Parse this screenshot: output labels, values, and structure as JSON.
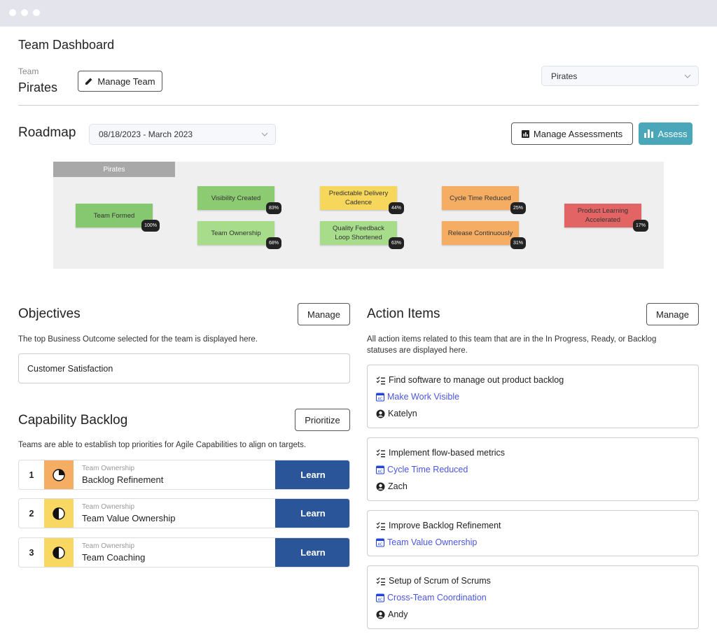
{
  "header": {
    "title": "Team Dashboard",
    "team_label": "Team",
    "team_name": "Pirates",
    "manage_team": "Manage Team",
    "team_select": "Pirates"
  },
  "roadmap": {
    "title": "Roadmap",
    "date_range": "08/18/2023 - March 2023",
    "manage_assessments": "Manage Assessments",
    "assess": "Assess",
    "lane": "Pirates",
    "nodes": [
      {
        "label": "Team Formed",
        "progress": "100%",
        "color": "#86c870"
      },
      {
        "label": "Visibility Created",
        "progress": "83%",
        "color": "#8ccb72"
      },
      {
        "label": "Team Ownership",
        "progress": "68%",
        "color": "#a6dc8a"
      },
      {
        "label": "Predictable Delivery Cadence",
        "progress": "44%",
        "color": "#f7d65c"
      },
      {
        "label": "Quality Feedback Loop Shortened",
        "progress": "63%",
        "color": "#a6dc8a"
      },
      {
        "label": "Cycle Time Reduced",
        "progress": "25%",
        "color": "#f4ad63"
      },
      {
        "label": "Release Continuously",
        "progress": "31%",
        "color": "#f4ad63"
      },
      {
        "label": "Product Learning Accelerated",
        "progress": "17%",
        "color": "#e36464"
      }
    ]
  },
  "objectives": {
    "title": "Objectives",
    "manage": "Manage",
    "description": "The top Business Outcome selected for the team is displayed here.",
    "outcome": "Customer Satisfaction"
  },
  "capability_backlog": {
    "title": "Capability Backlog",
    "button": "Prioritize",
    "description": "Teams are able to establish top priorities for Agile Capabilities to align on targets.",
    "items": [
      {
        "rank": 1,
        "category": "Team Ownership",
        "name": "Backlog Refinement",
        "action": "Learn",
        "color": "#f4ad63"
      },
      {
        "rank": 2,
        "category": "Team Ownership",
        "name": "Team Value Ownership",
        "action": "Learn",
        "color": "#f9d763"
      },
      {
        "rank": 3,
        "category": "Team Ownership",
        "name": "Team Coaching",
        "action": "Learn",
        "color": "#f9d763"
      }
    ]
  },
  "action_items": {
    "title": "Action Items",
    "manage": "Manage",
    "description": "All action items related to this team that are in the In Progress, Ready, or Backlog statuses are displayed here.",
    "items": [
      {
        "title": "Find software to manage out product backlog",
        "capability": "Make Work Visible",
        "owner": "Katelyn"
      },
      {
        "title": "Implement flow-based metrics",
        "capability": "Cycle Time Reduced",
        "owner": "Zach"
      },
      {
        "title": "Improve Backlog Refinement",
        "capability": "Team Value Ownership"
      },
      {
        "title": "Setup of Scrum of Scrums",
        "capability": "Cross-Team Coordination",
        "owner": "Andy"
      }
    ]
  }
}
